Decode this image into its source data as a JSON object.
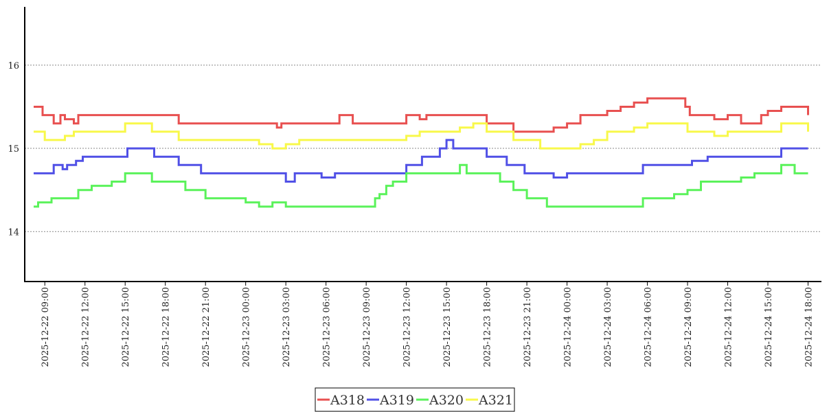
{
  "chart_data": {
    "type": "line",
    "step": true,
    "title": "",
    "xlabel": "",
    "ylabel": "",
    "ylim": [
      13.4,
      16.7
    ],
    "yticks": [
      14,
      15,
      16
    ],
    "grid": "horizontal-dotted",
    "legend_position": "bottom-center",
    "x_range": [
      "2025-12-22 07:30",
      "2025-12-24 19:00"
    ],
    "xticks": [
      "2025-12-22 09:00",
      "2025-12-22 12:00",
      "2025-12-22 15:00",
      "2025-12-22 18:00",
      "2025-12-22 21:00",
      "2025-12-23 00:00",
      "2025-12-23 03:00",
      "2025-12-23 06:00",
      "2025-12-23 09:00",
      "2025-12-23 12:00",
      "2025-12-23 15:00",
      "2025-12-23 18:00",
      "2025-12-23 21:00",
      "2025-12-24 00:00",
      "2025-12-24 03:00",
      "2025-12-24 06:00",
      "2025-12-24 09:00",
      "2025-12-24 12:00",
      "2025-12-24 15:00",
      "2025-12-24 18:00"
    ],
    "series": [
      {
        "name": "A318",
        "color": "#e85050",
        "x": [
          "2025-12-22 08:10",
          "2025-12-22 08:50",
          "2025-12-22 09:00",
          "2025-12-22 09:40",
          "2025-12-22 10:10",
          "2025-12-22 10:30",
          "2025-12-22 11:10",
          "2025-12-22 11:30",
          "2025-12-22 14:00",
          "2025-12-22 15:00",
          "2025-12-22 16:00",
          "2025-12-22 18:00",
          "2025-12-22 19:00",
          "2025-12-22 20:30",
          "2025-12-22 22:30",
          "2025-12-23 00:00",
          "2025-12-23 02:20",
          "2025-12-23 02:40",
          "2025-12-23 03:00",
          "2025-12-23 03:30",
          "2025-12-23 05:00",
          "2025-12-23 07:00",
          "2025-12-23 08:00",
          "2025-12-23 10:00",
          "2025-12-23 12:00",
          "2025-12-23 13:00",
          "2025-12-23 13:30",
          "2025-12-23 15:00",
          "2025-12-23 17:00",
          "2025-12-23 18:00",
          "2025-12-23 20:00",
          "2025-12-23 22:00",
          "2025-12-23 23:00",
          "2025-12-24 00:00",
          "2025-12-24 01:00",
          "2025-12-24 03:00",
          "2025-12-24 04:00",
          "2025-12-24 05:00",
          "2025-12-24 06:00",
          "2025-12-24 07:00",
          "2025-12-24 08:50",
          "2025-12-24 09:10",
          "2025-12-24 10:00",
          "2025-12-24 11:00",
          "2025-12-24 12:00",
          "2025-12-24 13:00",
          "2025-12-24 14:30",
          "2025-12-24 15:00",
          "2025-12-24 16:00",
          "2025-12-24 17:00",
          "2025-12-24 18:00"
        ],
        "values": [
          15.5,
          15.4,
          15.4,
          15.3,
          15.4,
          15.35,
          15.3,
          15.4,
          15.4,
          15.4,
          15.4,
          15.4,
          15.3,
          15.3,
          15.3,
          15.3,
          15.25,
          15.3,
          15.3,
          15.3,
          15.3,
          15.4,
          15.3,
          15.3,
          15.4,
          15.35,
          15.4,
          15.4,
          15.4,
          15.3,
          15.2,
          15.2,
          15.25,
          15.3,
          15.4,
          15.45,
          15.5,
          15.55,
          15.6,
          15.6,
          15.5,
          15.4,
          15.4,
          15.35,
          15.4,
          15.3,
          15.4,
          15.45,
          15.5,
          15.5,
          15.4
        ]
      },
      {
        "name": "A319",
        "color": "#5050e6",
        "x": [
          "2025-12-22 08:10",
          "2025-12-22 09:40",
          "2025-12-22 10:20",
          "2025-12-22 10:40",
          "2025-12-22 11:20",
          "2025-12-22 11:50",
          "2025-12-22 14:00",
          "2025-12-22 15:10",
          "2025-12-22 17:10",
          "2025-12-22 18:00",
          "2025-12-22 19:00",
          "2025-12-22 20:40",
          "2025-12-22 22:00",
          "2025-12-23 00:00",
          "2025-12-23 02:00",
          "2025-12-23 03:00",
          "2025-12-23 03:40",
          "2025-12-23 05:00",
          "2025-12-23 05:40",
          "2025-12-23 06:40",
          "2025-12-23 10:30",
          "2025-12-23 12:00",
          "2025-12-23 13:10",
          "2025-12-23 13:50",
          "2025-12-23 14:30",
          "2025-12-23 15:00",
          "2025-12-23 15:30",
          "2025-12-23 17:00",
          "2025-12-23 18:00",
          "2025-12-23 19:30",
          "2025-12-23 20:50",
          "2025-12-23 23:00",
          "2025-12-24 00:00",
          "2025-12-24 03:00",
          "2025-12-24 05:00",
          "2025-12-24 05:40",
          "2025-12-24 07:00",
          "2025-12-24 08:50",
          "2025-12-24 09:20",
          "2025-12-24 10:30",
          "2025-12-24 12:00",
          "2025-12-24 14:00",
          "2025-12-24 16:00",
          "2025-12-24 18:00"
        ],
        "values": [
          14.7,
          14.8,
          14.75,
          14.8,
          14.85,
          14.9,
          14.9,
          15.0,
          14.9,
          14.9,
          14.8,
          14.7,
          14.7,
          14.7,
          14.7,
          14.6,
          14.7,
          14.7,
          14.65,
          14.7,
          14.7,
          14.8,
          14.9,
          14.9,
          15.0,
          15.1,
          15.0,
          15.0,
          14.9,
          14.8,
          14.7,
          14.65,
          14.7,
          14.7,
          14.7,
          14.8,
          14.8,
          14.8,
          14.85,
          14.9,
          14.9,
          14.9,
          15.0,
          15.0
        ]
      },
      {
        "name": "A320",
        "color": "#5af25a",
        "x": [
          "2025-12-22 08:10",
          "2025-12-22 08:30",
          "2025-12-22 09:30",
          "2025-12-22 10:00",
          "2025-12-22 11:30",
          "2025-12-22 12:30",
          "2025-12-22 14:00",
          "2025-12-22 15:00",
          "2025-12-22 17:00",
          "2025-12-22 18:00",
          "2025-12-22 19:30",
          "2025-12-22 21:00",
          "2025-12-22 22:00",
          "2025-12-23 00:00",
          "2025-12-23 01:00",
          "2025-12-23 02:00",
          "2025-12-23 03:00",
          "2025-12-23 05:00",
          "2025-12-23 07:00",
          "2025-12-23 09:00",
          "2025-12-23 09:40",
          "2025-12-23 10:00",
          "2025-12-23 10:30",
          "2025-12-23 11:00",
          "2025-12-23 12:00",
          "2025-12-23 14:00",
          "2025-12-23 16:00",
          "2025-12-23 16:30",
          "2025-12-23 18:00",
          "2025-12-23 19:00",
          "2025-12-23 20:00",
          "2025-12-23 21:00",
          "2025-12-23 22:30",
          "2025-12-24 00:00",
          "2025-12-24 03:00",
          "2025-12-24 05:00",
          "2025-12-24 05:40",
          "2025-12-24 07:00",
          "2025-12-24 08:00",
          "2025-12-24 09:00",
          "2025-12-24 10:00",
          "2025-12-24 11:00",
          "2025-12-24 12:00",
          "2025-12-24 13:00",
          "2025-12-24 14:00",
          "2025-12-24 15:00",
          "2025-12-24 16:00",
          "2025-12-24 17:00",
          "2025-12-24 18:00"
        ],
        "values": [
          14.3,
          14.35,
          14.4,
          14.4,
          14.5,
          14.55,
          14.6,
          14.7,
          14.6,
          14.6,
          14.5,
          14.4,
          14.4,
          14.35,
          14.3,
          14.35,
          14.3,
          14.3,
          14.3,
          14.3,
          14.4,
          14.45,
          14.55,
          14.6,
          14.7,
          14.7,
          14.8,
          14.7,
          14.7,
          14.6,
          14.5,
          14.4,
          14.3,
          14.3,
          14.3,
          14.3,
          14.4,
          14.4,
          14.45,
          14.5,
          14.6,
          14.6,
          14.6,
          14.65,
          14.7,
          14.7,
          14.8,
          14.7,
          14.7
        ]
      },
      {
        "name": "A321",
        "color": "#f8f84a",
        "x": [
          "2025-12-22 08:10",
          "2025-12-22 09:00",
          "2025-12-22 09:40",
          "2025-12-22 10:30",
          "2025-12-22 11:10",
          "2025-12-22 12:00",
          "2025-12-22 15:00",
          "2025-12-22 17:00",
          "2025-12-22 18:00",
          "2025-12-22 19:00",
          "2025-12-22 21:00",
          "2025-12-23 00:00",
          "2025-12-23 01:00",
          "2025-12-23 02:00",
          "2025-12-23 03:00",
          "2025-12-23 04:00",
          "2025-12-23 06:00",
          "2025-12-23 09:00",
          "2025-12-23 11:00",
          "2025-12-23 12:00",
          "2025-12-23 13:00",
          "2025-12-23 14:00",
          "2025-12-23 16:00",
          "2025-12-23 17:00",
          "2025-12-23 18:00",
          "2025-12-23 19:00",
          "2025-12-23 20:00",
          "2025-12-23 21:00",
          "2025-12-23 22:00",
          "2025-12-24 00:00",
          "2025-12-24 01:00",
          "2025-12-24 02:00",
          "2025-12-24 03:00",
          "2025-12-24 04:00",
          "2025-12-24 05:00",
          "2025-12-24 06:00",
          "2025-12-24 08:00",
          "2025-12-24 09:00",
          "2025-12-24 10:00",
          "2025-12-24 11:00",
          "2025-12-24 12:00",
          "2025-12-24 13:00",
          "2025-12-24 14:00",
          "2025-12-24 16:00",
          "2025-12-24 18:00"
        ],
        "values": [
          15.2,
          15.1,
          15.1,
          15.15,
          15.2,
          15.2,
          15.3,
          15.2,
          15.2,
          15.1,
          15.1,
          15.1,
          15.05,
          15.0,
          15.05,
          15.1,
          15.1,
          15.1,
          15.1,
          15.15,
          15.2,
          15.2,
          15.25,
          15.3,
          15.2,
          15.2,
          15.1,
          15.1,
          15.0,
          15.0,
          15.05,
          15.1,
          15.2,
          15.2,
          15.25,
          15.3,
          15.3,
          15.2,
          15.2,
          15.15,
          15.2,
          15.2,
          15.2,
          15.3,
          15.2
        ]
      }
    ]
  }
}
